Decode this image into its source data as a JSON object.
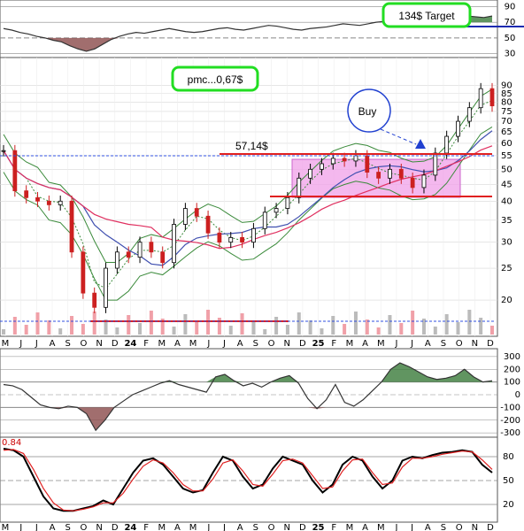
{
  "chart_data": [
    {
      "type": "line",
      "panel": "top-oscillator",
      "y_ticks": [
        "90",
        "70",
        "50",
        "30"
      ],
      "ylim": [
        25,
        95
      ],
      "values": [
        62,
        60,
        57,
        55,
        52,
        50,
        47,
        45,
        40,
        36,
        33,
        36,
        42,
        48,
        52,
        55,
        57,
        56,
        58,
        60,
        62,
        60,
        58,
        57,
        58,
        60,
        62,
        63,
        61,
        60,
        62,
        64,
        66,
        65,
        63,
        61,
        60,
        62,
        63,
        64,
        66,
        68,
        67,
        66,
        68,
        70,
        71,
        73,
        75,
        76,
        78,
        80,
        82,
        84,
        83,
        80,
        78,
        77,
        76,
        78
      ]
    },
    {
      "type": "candlestick",
      "panel": "price",
      "x_ticks": [
        "M",
        "J",
        "J",
        "A",
        "S",
        "O",
        "N",
        "D",
        "24",
        "F",
        "M",
        "A",
        "M",
        "J",
        "J",
        "A",
        "S",
        "O",
        "N",
        "D",
        "25",
        "F",
        "M",
        "A",
        "M",
        "J",
        "J",
        "A",
        "S",
        "O",
        "N",
        "D"
      ],
      "y_ticks": [
        "90",
        "85",
        "80",
        "75",
        "70",
        "65",
        "60",
        "55",
        "50",
        "45",
        "40",
        "35",
        "30",
        "25",
        "20"
      ],
      "ylim": [
        16,
        92
      ],
      "scale": "log",
      "close": [
        57,
        43,
        41,
        40,
        39,
        40,
        28,
        21,
        19,
        25,
        28,
        27,
        30,
        28,
        26,
        34,
        38,
        36,
        32,
        30,
        31,
        30,
        33,
        37,
        38,
        41,
        47,
        50,
        52,
        54,
        53,
        55,
        49,
        47,
        50,
        47,
        44,
        48,
        56,
        63,
        70,
        77,
        88,
        78
      ]
    },
    {
      "type": "line",
      "panel": "middle-oscillator",
      "y_ticks": [
        "300",
        "200",
        "100",
        "0",
        "-100",
        "-200",
        "-300"
      ],
      "ylim": [
        -320,
        320
      ],
      "values": [
        80,
        70,
        40,
        -20,
        -80,
        -100,
        -110,
        -90,
        -100,
        -150,
        -280,
        -200,
        -100,
        -50,
        0,
        30,
        60,
        90,
        110,
        80,
        60,
        40,
        20,
        140,
        160,
        110,
        70,
        90,
        60,
        100,
        130,
        150,
        90,
        -30,
        -110,
        -40,
        80,
        -60,
        -90,
        -40,
        30,
        100,
        200,
        250,
        220,
        180,
        140,
        120,
        130,
        150,
        200,
        140,
        100,
        110
      ]
    },
    {
      "type": "line",
      "panel": "stochastic",
      "y_ticks": [
        "80",
        "50",
        "20"
      ],
      "ylim": [
        0,
        100
      ],
      "series": [
        {
          "name": "",
          "values": [
            90,
            88,
            80,
            55,
            30,
            15,
            12,
            12,
            15,
            18,
            25,
            20,
            40,
            60,
            75,
            78,
            70,
            55,
            40,
            35,
            38,
            60,
            80,
            75,
            55,
            40,
            45,
            65,
            80,
            75,
            70,
            50,
            35,
            45,
            70,
            80,
            75,
            55,
            40,
            50,
            75,
            80,
            78,
            82,
            85,
            86,
            88,
            86,
            70,
            60
          ]
        },
        {
          "name": "",
          "values": [
            88,
            89,
            84,
            64,
            40,
            22,
            13,
            12,
            14,
            17,
            22,
            22,
            34,
            52,
            68,
            76,
            72,
            60,
            45,
            37,
            37,
            52,
            72,
            76,
            62,
            45,
            43,
            58,
            75,
            77,
            72,
            56,
            40,
            42,
            62,
            76,
            77,
            60,
            45,
            47,
            67,
            78,
            78,
            80,
            83,
            85,
            87,
            86,
            76,
            64
          ]
        }
      ]
    }
  ],
  "annotations": {
    "target_label": "134$ Target",
    "pmc_label": "pmc...0,67$",
    "buy_label": "Buy",
    "resistance_label": "57,14$",
    "stoch_value": "0.84"
  },
  "colors": {
    "green_frame": "#22dd22",
    "red_level": "#e02020",
    "blue_dash": "#3050e0",
    "pink_zone": "#f0a0e8",
    "ma_red": "#e03060",
    "ma_blue": "#4050b0",
    "band_green": "#3a8a3a"
  }
}
